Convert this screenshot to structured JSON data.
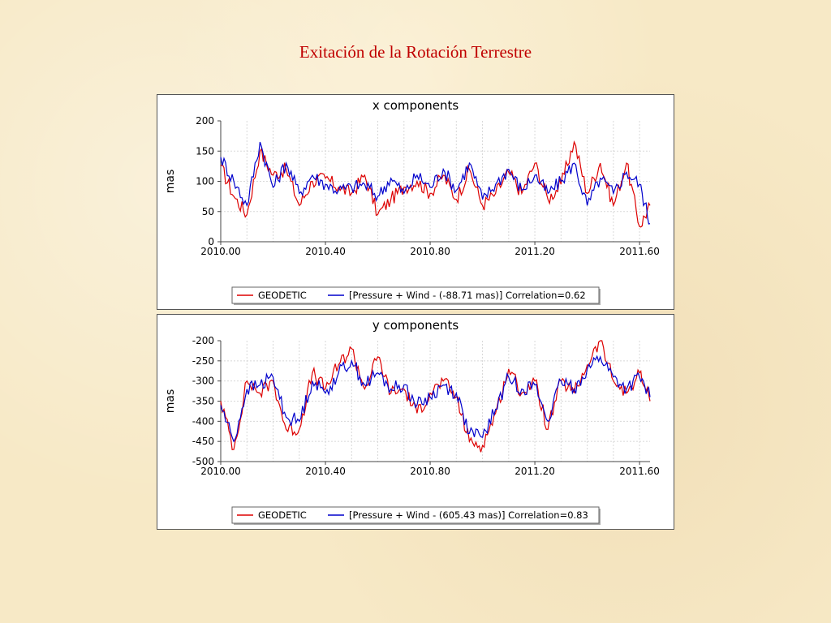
{
  "slide": {
    "title": "Exitación de la Rotación Terrestre"
  },
  "colors": {
    "geodetic": "#dd0000",
    "pressure_wind": "#0000cc"
  },
  "chart_data": [
    {
      "type": "line",
      "title": "x components",
      "ylabel": "mas",
      "xlim": [
        2010.0,
        2011.64
      ],
      "ylim": [
        0,
        200
      ],
      "xticks": [
        2010.0,
        2010.4,
        2010.8,
        2011.2,
        2011.6
      ],
      "xtick_labels": [
        "2010.00",
        "2010.40",
        "2010.80",
        "2011.20",
        "2011.60"
      ],
      "yticks": [
        0,
        50,
        100,
        150,
        200
      ],
      "ytick_labels": [
        "0",
        "50",
        "100",
        "150",
        "200"
      ],
      "grid": true,
      "legend_position": "bottom",
      "x": [
        2010.0,
        2010.05,
        2010.1,
        2010.15,
        2010.2,
        2010.25,
        2010.3,
        2010.35,
        2010.4,
        2010.45,
        2010.5,
        2010.55,
        2010.6,
        2010.65,
        2010.7,
        2010.75,
        2010.8,
        2010.85,
        2010.9,
        2010.95,
        2011.0,
        2011.05,
        2011.1,
        2011.15,
        2011.2,
        2011.25,
        2011.3,
        2011.35,
        2011.4,
        2011.45,
        2011.5,
        2011.55,
        2011.6,
        2011.64
      ],
      "series": [
        {
          "name": "GEODETIC",
          "values": [
            125,
            75,
            45,
            150,
            110,
            120,
            60,
            100,
            105,
            90,
            80,
            110,
            45,
            70,
            90,
            100,
            80,
            110,
            70,
            120,
            60,
            80,
            115,
            80,
            130,
            70,
            95,
            165,
            80,
            130,
            60,
            130,
            25,
            60
          ]
        },
        {
          "name": "[Pressure + Wind - (-88.71 mas)] Correlation=0.62",
          "values": [
            140,
            100,
            60,
            165,
            90,
            130,
            80,
            110,
            95,
            85,
            90,
            95,
            75,
            105,
            80,
            110,
            90,
            120,
            85,
            130,
            70,
            95,
            120,
            85,
            110,
            80,
            100,
            130,
            60,
            105,
            80,
            115,
            95,
            30
          ]
        }
      ],
      "legend": [
        {
          "label": "GEODETIC",
          "series": 0
        },
        {
          "label": "[Pressure + Wind - (-88.71 mas)] Correlation=0.62",
          "series": 1
        }
      ]
    },
    {
      "type": "line",
      "title": "y components",
      "ylabel": "mas",
      "xlim": [
        2010.0,
        2011.64
      ],
      "ylim": [
        -500,
        -200
      ],
      "xticks": [
        2010.0,
        2010.4,
        2010.8,
        2011.2,
        2011.6
      ],
      "xtick_labels": [
        "2010.00",
        "2010.40",
        "2010.80",
        "2011.20",
        "2011.60"
      ],
      "yticks": [
        -500,
        -450,
        -400,
        -350,
        -300,
        -250,
        -200
      ],
      "ytick_labels": [
        "-500",
        "-450",
        "-400",
        "-350",
        "-300",
        "-250",
        "-200"
      ],
      "grid": true,
      "legend_position": "bottom",
      "x": [
        2010.0,
        2010.05,
        2010.1,
        2010.15,
        2010.2,
        2010.25,
        2010.3,
        2010.35,
        2010.4,
        2010.45,
        2010.5,
        2010.55,
        2010.6,
        2010.65,
        2010.7,
        2010.75,
        2010.8,
        2010.85,
        2010.9,
        2010.95,
        2011.0,
        2011.05,
        2011.1,
        2011.15,
        2011.2,
        2011.25,
        2011.3,
        2011.35,
        2011.4,
        2011.45,
        2011.5,
        2011.55,
        2011.6,
        2011.64
      ],
      "series": [
        {
          "name": "GEODETIC",
          "values": [
            -350,
            -470,
            -300,
            -330,
            -300,
            -420,
            -420,
            -280,
            -320,
            -260,
            -220,
            -320,
            -240,
            -330,
            -320,
            -380,
            -330,
            -300,
            -340,
            -450,
            -460,
            -380,
            -270,
            -330,
            -300,
            -420,
            -300,
            -330,
            -260,
            -200,
            -300,
            -330,
            -280,
            -350
          ]
        },
        {
          "name": "[Pressure + Wind - (605.43 mas)] Correlation=0.83",
          "values": [
            -360,
            -450,
            -320,
            -310,
            -290,
            -390,
            -400,
            -300,
            -330,
            -280,
            -250,
            -310,
            -280,
            -320,
            -310,
            -360,
            -340,
            -310,
            -330,
            -430,
            -440,
            -370,
            -290,
            -320,
            -310,
            -400,
            -300,
            -320,
            -270,
            -240,
            -290,
            -320,
            -290,
            -340
          ]
        }
      ],
      "legend": [
        {
          "label": "GEODETIC",
          "series": 0
        },
        {
          "label": "[Pressure + Wind - (605.43 mas)] Correlation=0.83",
          "series": 1
        }
      ]
    }
  ]
}
